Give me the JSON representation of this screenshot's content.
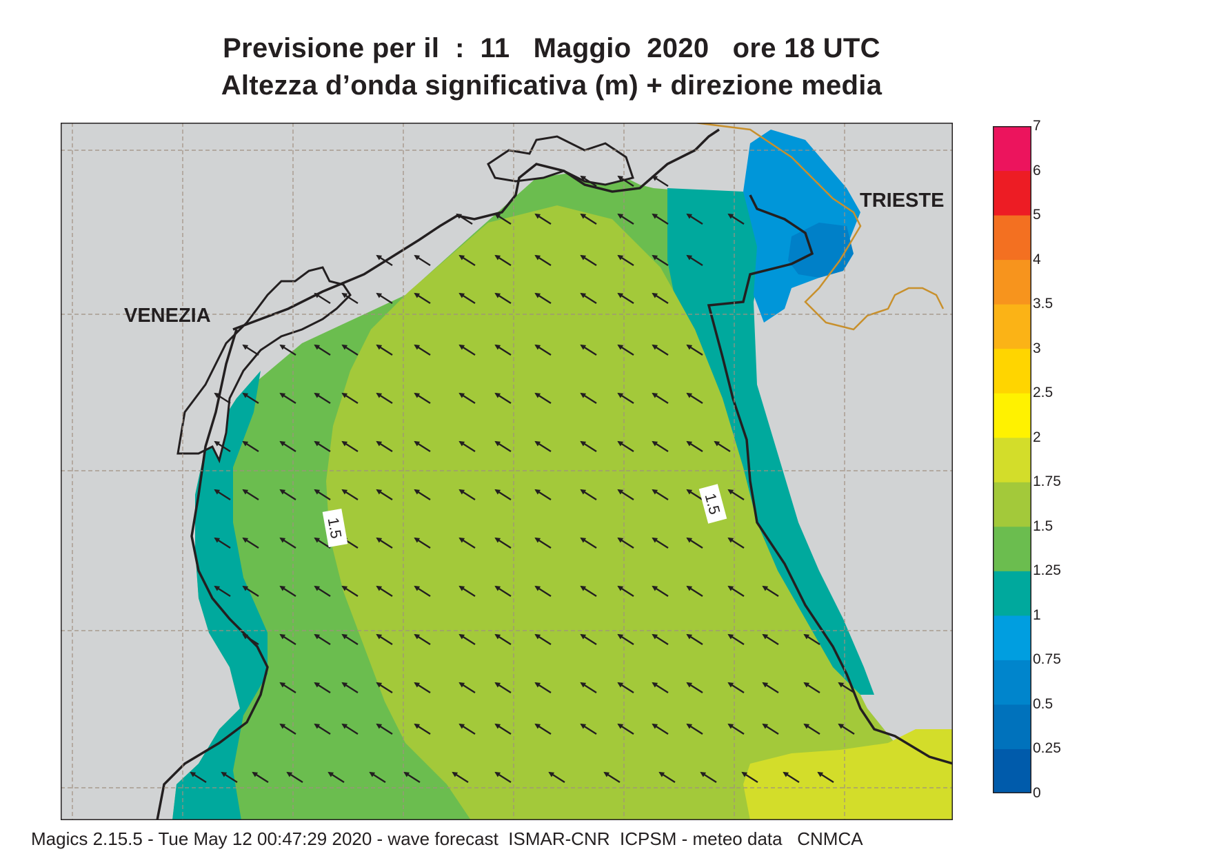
{
  "header": {
    "title_line1": "Previsione per il  :  11   Maggio  2020   ore 18 UTC",
    "title_line2": "Altezza d’onda significativa (m) + direzione media"
  },
  "map": {
    "cities": [
      {
        "name": "VENEZIA"
      },
      {
        "name": "TRIESTE"
      }
    ],
    "contour_labels": [
      "1.5",
      "1.5"
    ],
    "colors": {
      "land": "#d1d3d4",
      "coast": "#231f20",
      "border": "#c8902c",
      "grid": "#a09080",
      "band_0.75_1": "#0096d9",
      "band_0.5_0.75": "#0080c8",
      "band_1_1.25": "#00a99d",
      "band_1.25_1.5": "#6bbd4f",
      "band_1.5_1.75": "#a3c93a",
      "band_1.75_2": "#d3dd2a"
    },
    "arrow_direction": "north-west"
  },
  "legend": {
    "title": "",
    "levels": [
      "0",
      "0.25",
      "0.5",
      "0.75",
      "1",
      "1.25",
      "1.5",
      "1.75",
      "2",
      "2.5",
      "3",
      "3.5",
      "4",
      "5",
      "6",
      "7"
    ],
    "colors": [
      "#005bab",
      "#0072bc",
      "#0085cc",
      "#009ee0",
      "#00a99d",
      "#6bbd4f",
      "#a3c93a",
      "#d3dd2a",
      "#fff200",
      "#ffd500",
      "#fbb316",
      "#f7941d",
      "#f37021",
      "#ed1c24",
      "#ec145d"
    ]
  },
  "footer": {
    "text": "Magics 2.15.5 - Tue May 12 00:47:29 2020 - wave forecast  ISMAR-CNR  ICPSM - meteo data   CNMCA"
  }
}
